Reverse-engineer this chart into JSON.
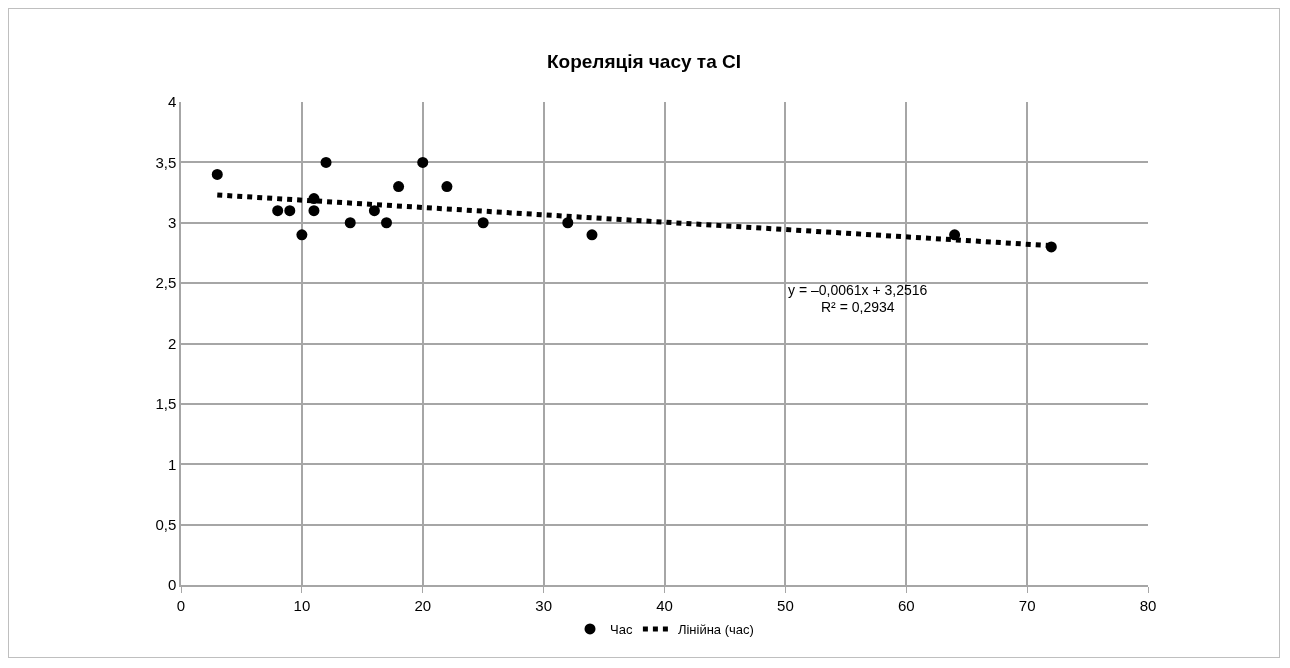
{
  "chart_data": {
    "type": "scatter",
    "title": "Кореляція часу та CI",
    "series": [
      {
        "name": "Час",
        "color": "#000000",
        "marker": "circle",
        "x": [
          3,
          8,
          9,
          10,
          11,
          11,
          12,
          14,
          16,
          17,
          18,
          20,
          22,
          25,
          32,
          34,
          64,
          72
        ],
        "values": [
          3.4,
          3.1,
          3.1,
          2.9,
          3.2,
          3.1,
          3.5,
          3.0,
          3.1,
          3.0,
          3.3,
          3.5,
          3.3,
          3.0,
          3.0,
          2.9,
          2.9,
          2.8
        ]
      },
      {
        "name": "Лінійна (час)",
        "type": "line",
        "color": "#000000",
        "line_style": "dotted",
        "marker": "none",
        "x": [
          3,
          72
        ],
        "values": [
          3.23,
          2.81
        ]
      }
    ],
    "xlim": [
      0,
      80
    ],
    "xticks": [
      0,
      10,
      20,
      30,
      40,
      50,
      60,
      70,
      80
    ],
    "ylim": [
      0,
      4
    ],
    "yticks": [
      0,
      {
        "value": 0.5,
        "label": "0,5"
      },
      1,
      {
        "value": 1.5,
        "label": "1,5"
      },
      2,
      {
        "value": 2.5,
        "label": "2,5"
      },
      3,
      {
        "value": 3.5,
        "label": "3,5"
      },
      4
    ],
    "grid": true,
    "legend": "bottom",
    "annotations": [
      "y = –0,0061x + 3,2516",
      "R² = 0,2934"
    ]
  }
}
